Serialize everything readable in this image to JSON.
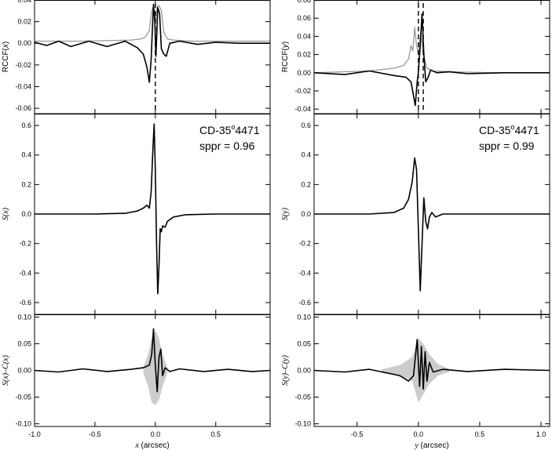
{
  "chart_data": [
    {
      "type": "line",
      "panel": "left-top",
      "ylabel": "RCCF(x)",
      "xlim": [
        -1.0,
        0.95
      ],
      "ylim": [
        -0.065,
        0.04
      ],
      "yticks": [
        "0.04",
        "0.02",
        "0.00",
        "-0.02",
        "-0.04",
        "-0.06"
      ],
      "ytick_values": [
        0.04,
        0.02,
        0.0,
        -0.02,
        -0.04,
        -0.06
      ],
      "dashed_vlines_x": [
        0.0
      ],
      "series": [
        {
          "color": "#999999",
          "x": [
            -1.0,
            -0.6,
            -0.2,
            -0.12,
            -0.08,
            -0.05,
            -0.03,
            -0.015,
            0.0,
            0.015,
            0.03,
            0.05,
            0.07,
            0.1,
            0.15,
            0.3,
            0.6,
            0.95
          ],
          "y": [
            0.002,
            0.002,
            0.003,
            0.004,
            0.006,
            0.012,
            0.03,
            0.034,
            0.02,
            0.034,
            0.035,
            0.03,
            0.01,
            0.004,
            0.003,
            0.002,
            0.002,
            0.002
          ]
        },
        {
          "color": "#000000",
          "x": [
            -1.0,
            -0.9,
            -0.8,
            -0.7,
            -0.55,
            -0.4,
            -0.25,
            -0.15,
            -0.1,
            -0.07,
            -0.05,
            -0.035,
            -0.025,
            -0.015,
            -0.005,
            0.005,
            0.02,
            0.035,
            0.05,
            0.07,
            0.09,
            0.12,
            0.2,
            0.35,
            0.5,
            0.7,
            0.95
          ],
          "y": [
            0.001,
            -0.002,
            0.002,
            -0.003,
            0.002,
            -0.003,
            0.002,
            -0.004,
            -0.01,
            -0.022,
            -0.036,
            -0.015,
            0.012,
            0.036,
            0.02,
            -0.012,
            0.033,
            0.028,
            -0.005,
            -0.01,
            -0.012,
            0.0,
            0.002,
            -0.001,
            0.001,
            0.0,
            0.0
          ]
        }
      ]
    },
    {
      "type": "line",
      "panel": "left-middle",
      "ylabel": "S(x)",
      "xlim": [
        -1.0,
        0.95
      ],
      "ylim": [
        -0.68,
        0.68
      ],
      "yticks": [
        "0.6",
        "0.4",
        "0.2",
        "0.0",
        "-0.2",
        "-0.4",
        "-0.6"
      ],
      "ytick_values": [
        0.6,
        0.4,
        0.2,
        0.0,
        -0.2,
        -0.4,
        -0.6
      ],
      "annotation": [
        "CD-35°4471",
        "sppr = 0.96"
      ],
      "series": [
        {
          "color": "#000000",
          "x": [
            -1.0,
            -0.5,
            -0.25,
            -0.15,
            -0.1,
            -0.07,
            -0.05,
            -0.035,
            -0.02,
            -0.01,
            0.0,
            0.01,
            0.02,
            0.03,
            0.04,
            0.05,
            0.06,
            0.08,
            0.1,
            0.15,
            0.25,
            0.5,
            0.95
          ],
          "y": [
            0.0,
            0.0,
            0.005,
            0.02,
            0.04,
            0.06,
            0.04,
            0.15,
            0.45,
            0.61,
            0.3,
            -0.2,
            -0.54,
            -0.35,
            -0.1,
            -0.12,
            -0.08,
            -0.09,
            -0.05,
            -0.02,
            -0.005,
            0.0,
            0.0
          ]
        }
      ]
    },
    {
      "type": "line",
      "panel": "left-bottom",
      "ylabel": "S(x)–C(x)",
      "xlabel": "x (arcsec)",
      "xlim": [
        -1.0,
        0.95
      ],
      "ylim": [
        -0.105,
        0.105
      ],
      "xticks": [
        "-1.0",
        "-0.5",
        "0.0",
        "0.5"
      ],
      "xtick_values": [
        -1.0,
        -0.5,
        0.0,
        0.5
      ],
      "yticks": [
        "0.10",
        "0.05",
        "0.00",
        "-0.05",
        "-0.10"
      ],
      "ytick_values": [
        0.1,
        0.05,
        0.0,
        -0.05,
        -0.1
      ],
      "envelope": {
        "color": "#cccccc",
        "x": [
          -0.1,
          -0.06,
          -0.03,
          0.0,
          0.03,
          0.06,
          0.1
        ],
        "upper": [
          0.005,
          0.03,
          0.06,
          0.075,
          0.06,
          0.03,
          0.005
        ],
        "lower": [
          -0.005,
          -0.03,
          -0.06,
          -0.065,
          -0.055,
          -0.03,
          -0.005
        ]
      },
      "series": [
        {
          "color": "#000000",
          "x": [
            -1.0,
            -0.8,
            -0.6,
            -0.4,
            -0.2,
            -0.1,
            -0.05,
            -0.03,
            -0.015,
            0.0,
            0.015,
            0.03,
            0.045,
            0.06,
            0.08,
            0.12,
            0.2,
            0.4,
            0.6,
            0.8,
            0.95
          ],
          "y": [
            0.0,
            -0.003,
            0.003,
            -0.002,
            0.002,
            0.005,
            0.01,
            0.03,
            0.078,
            0.01,
            -0.04,
            0.025,
            0.04,
            -0.01,
            0.005,
            -0.002,
            0.003,
            -0.002,
            0.002,
            -0.002,
            0.0
          ]
        }
      ]
    },
    {
      "type": "line",
      "panel": "right-top",
      "ylabel": "RCCF(y)",
      "xlim": [
        -0.85,
        1.07
      ],
      "ylim": [
        -0.045,
        0.08
      ],
      "yticks": [
        "0.08",
        "0.06",
        "0.04",
        "0.02",
        "0.00",
        "-0.02",
        "-0.04"
      ],
      "ytick_values": [
        0.08,
        0.06,
        0.04,
        0.02,
        0.0,
        -0.02,
        -0.04
      ],
      "dashed_vlines_x": [
        0.0,
        0.04
      ],
      "series": [
        {
          "color": "#999999",
          "x": [
            -0.85,
            -0.4,
            -0.2,
            -0.12,
            -0.08,
            -0.06,
            -0.045,
            -0.03,
            -0.015,
            0.0,
            0.02,
            0.04,
            0.07,
            0.12,
            0.3,
            0.6,
            1.07
          ],
          "y": [
            0.0,
            0.002,
            0.005,
            0.008,
            0.015,
            0.03,
            0.024,
            0.05,
            0.03,
            0.02,
            0.045,
            0.02,
            0.005,
            0.002,
            0.001,
            0.0,
            0.0
          ]
        },
        {
          "color": "#000000",
          "x": [
            -0.85,
            -0.6,
            -0.4,
            -0.2,
            -0.1,
            -0.06,
            -0.04,
            -0.025,
            -0.01,
            0.0,
            0.015,
            0.03,
            0.045,
            0.06,
            0.08,
            0.1,
            0.15,
            0.25,
            0.4,
            0.7,
            1.07
          ],
          "y": [
            0.0,
            -0.002,
            0.002,
            -0.003,
            -0.005,
            -0.01,
            -0.025,
            -0.036,
            -0.01,
            0.0,
            0.03,
            0.065,
            0.02,
            -0.01,
            -0.005,
            0.003,
            0.0,
            0.001,
            -0.001,
            0.0,
            0.0
          ]
        }
      ]
    },
    {
      "type": "line",
      "panel": "right-middle",
      "ylabel": "S(y)",
      "xlim": [
        -0.85,
        1.07
      ],
      "ylim": [
        -0.68,
        0.68
      ],
      "yticks": [
        "0.6",
        "0.4",
        "0.2",
        "0.0",
        "-0.2",
        "-0.4",
        "-0.6"
      ],
      "ytick_values": [
        0.6,
        0.4,
        0.2,
        0.0,
        -0.2,
        -0.4,
        -0.6
      ],
      "annotation": [
        "CD-35°4471",
        "sppr = 0.99"
      ],
      "series": [
        {
          "color": "#000000",
          "x": [
            -0.85,
            -0.4,
            -0.2,
            -0.12,
            -0.08,
            -0.05,
            -0.03,
            -0.015,
            0.0,
            0.015,
            0.03,
            0.045,
            0.06,
            0.075,
            0.09,
            0.11,
            0.14,
            0.2,
            0.4,
            1.07
          ],
          "y": [
            0.0,
            0.0,
            0.01,
            0.04,
            0.1,
            0.22,
            0.38,
            0.3,
            -0.1,
            -0.52,
            -0.2,
            0.11,
            -0.05,
            -0.1,
            -0.02,
            0.01,
            -0.02,
            0.0,
            0.0,
            0.0
          ]
        }
      ]
    },
    {
      "type": "line",
      "panel": "right-bottom",
      "ylabel": "S(y)–C(y)",
      "xlabel": "y (arcsec)",
      "xlim": [
        -0.85,
        1.07
      ],
      "ylim": [
        -0.105,
        0.105
      ],
      "xticks": [
        "-0.5",
        "0.0",
        "0.5",
        "1.0"
      ],
      "xtick_values": [
        -0.5,
        0.0,
        0.5,
        1.0
      ],
      "yticks": [
        "0.10",
        "0.05",
        "0.00",
        "-0.05",
        "-0.10"
      ],
      "ytick_values": [
        0.1,
        0.05,
        0.0,
        -0.05,
        -0.1
      ],
      "envelope": {
        "color": "#cccccc",
        "x": [
          -0.3,
          -0.15,
          -0.05,
          0.0,
          0.04,
          0.09,
          0.16,
          0.25
        ],
        "upper": [
          0.002,
          0.01,
          0.025,
          0.06,
          0.05,
          0.03,
          0.012,
          0.003
        ],
        "lower": [
          -0.005,
          -0.01,
          -0.02,
          -0.06,
          -0.045,
          -0.025,
          -0.01,
          -0.003
        ]
      },
      "series": [
        {
          "color": "#000000",
          "x": [
            -0.85,
            -0.6,
            -0.4,
            -0.25,
            -0.15,
            -0.08,
            -0.04,
            -0.01,
            0.01,
            0.025,
            0.04,
            0.055,
            0.07,
            0.09,
            0.12,
            0.2,
            0.4,
            0.7,
            1.07
          ],
          "y": [
            0.0,
            -0.003,
            0.002,
            -0.005,
            -0.01,
            -0.02,
            -0.01,
            0.058,
            -0.03,
            0.045,
            -0.035,
            0.035,
            -0.02,
            0.015,
            -0.003,
            0.002,
            -0.002,
            0.002,
            0.0
          ]
        }
      ]
    }
  ]
}
